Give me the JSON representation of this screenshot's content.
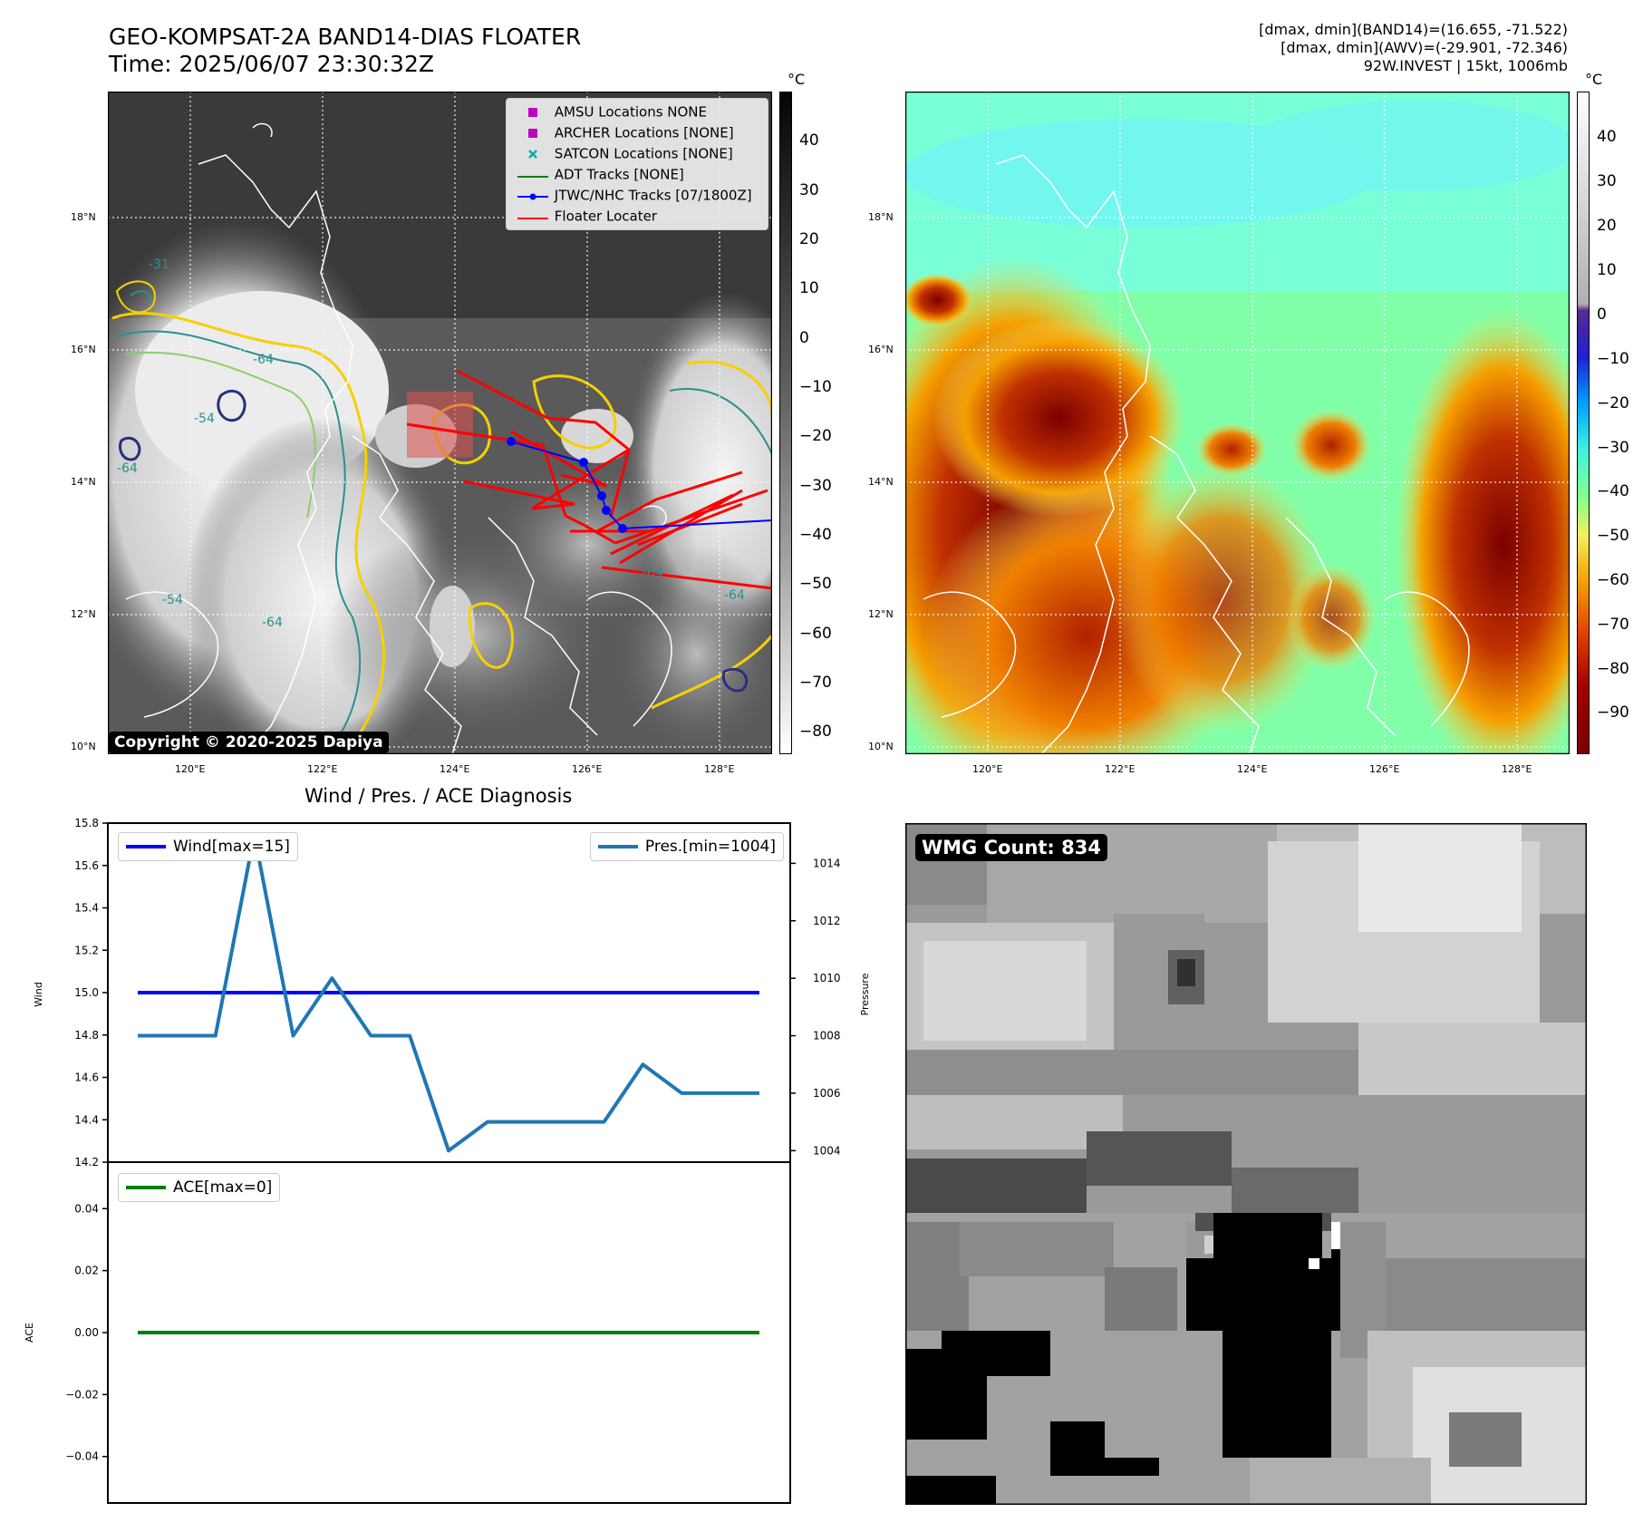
{
  "header": {
    "title_line1": "GEO-KOMPSAT-2A BAND14-DIAS FLOATER",
    "title_line2": "Time: 2025/06/07 23:30:32Z",
    "right_line1": "[dmax, dmin](BAND14)=(16.655, -71.522)",
    "right_line2": "[dmax, dmin](AWV)=(-29.901, -72.346)",
    "right_line3": "92W.INVEST | 15kt, 1006mb"
  },
  "ir_panel": {
    "lat_labels": [
      "18°N",
      "16°N",
      "14°N",
      "12°N",
      "10°N"
    ],
    "lon_labels": [
      "120°E",
      "122°E",
      "124°E",
      "126°E",
      "128°E"
    ],
    "copyright": "Copyright © 2020-2025 Dapiya",
    "colorbar_unit": "°C",
    "colorbar_ticks": [
      "40",
      "30",
      "20",
      "10",
      "0",
      "−10",
      "−20",
      "−30",
      "−40",
      "−50",
      "−60",
      "−70",
      "−80"
    ],
    "legend": [
      {
        "label": "AMSU Locations NONE",
        "marker": "square",
        "color": "#c000c0"
      },
      {
        "label": "ARCHER Locations [NONE]",
        "marker": "square",
        "color": "#c000c0"
      },
      {
        "label": "SATCON Locations [NONE]",
        "marker": "x",
        "color": "#00b0b0"
      },
      {
        "label": "ADT Tracks [NONE]",
        "marker": "line",
        "color": "#008000"
      },
      {
        "label": "JTWC/NHC Tracks [07/1800Z]",
        "marker": "line-dot",
        "color": "#0000ff"
      },
      {
        "label": "Floater Locater",
        "marker": "line",
        "color": "#ff0000"
      }
    ],
    "contour_labels": [
      "-64",
      "-54",
      "-64",
      "-54",
      "-64",
      "-31",
      "-64",
      "-64"
    ]
  },
  "awv_panel": {
    "lat_labels": [
      "18°N",
      "16°N",
      "14°N",
      "12°N",
      "10°N"
    ],
    "lon_labels": [
      "120°E",
      "122°E",
      "124°E",
      "126°E",
      "128°E"
    ],
    "colorbar_unit": "°C",
    "colorbar_ticks": [
      "40",
      "30",
      "20",
      "10",
      "0",
      "−10",
      "−20",
      "−30",
      "−40",
      "−50",
      "−60",
      "−70",
      "−80",
      "−90"
    ]
  },
  "diag_title": "Wind / Pres. / ACE Diagnosis",
  "wmg_label": "WMG Count: 834",
  "chart_data": [
    {
      "type": "line",
      "title": "Wind / Pres. / ACE Diagnosis",
      "ylabel": "Wind",
      "y2label": "Pressure",
      "ylim": [
        14.2,
        15.8
      ],
      "y_ticks": [
        14.2,
        14.4,
        14.6,
        14.8,
        15.0,
        15.2,
        15.4,
        15.6,
        15.8
      ],
      "y2lim": [
        1003.6,
        1015.4
      ],
      "y2_ticks": [
        1004,
        1006,
        1008,
        1010,
        1012,
        1014
      ],
      "x": [
        0,
        1,
        2,
        3,
        4,
        5,
        6,
        7,
        8,
        9,
        10,
        11,
        12,
        13,
        14,
        15,
        16
      ],
      "series": [
        {
          "name": "Wind[max=15]",
          "axis": "left",
          "color": "#0000ff",
          "values": [
            15,
            15,
            15,
            15,
            15,
            15,
            15,
            15,
            15,
            15,
            15,
            15,
            15,
            15,
            15,
            15,
            15
          ]
        },
        {
          "name": "Pres.[min=1004]",
          "axis": "right",
          "color": "#1f77b4",
          "values": [
            1008,
            1008,
            1008,
            1015,
            1008,
            1010,
            1008,
            1008,
            1004,
            1005,
            1005,
            1005,
            1005,
            1007,
            1006,
            1006,
            1006
          ]
        }
      ],
      "legend": [
        "top-left",
        "top-right"
      ]
    },
    {
      "type": "line",
      "ylabel": "ACE",
      "ylim": [
        -0.055,
        0.055
      ],
      "y_ticks": [
        -0.04,
        -0.02,
        0.0,
        0.02,
        0.04
      ],
      "y_tick_labels": [
        "−0.04",
        "−0.02",
        "0.00",
        "0.02",
        "0.04"
      ],
      "x": [
        0,
        1,
        2,
        3,
        4,
        5,
        6,
        7,
        8,
        9,
        10,
        11,
        12,
        13,
        14,
        15,
        16
      ],
      "series": [
        {
          "name": "ACE[max=0]",
          "color": "#008000",
          "values": [
            0,
            0,
            0,
            0,
            0,
            0,
            0,
            0,
            0,
            0,
            0,
            0,
            0,
            0,
            0,
            0,
            0
          ]
        }
      ],
      "legend": "top-left"
    }
  ]
}
